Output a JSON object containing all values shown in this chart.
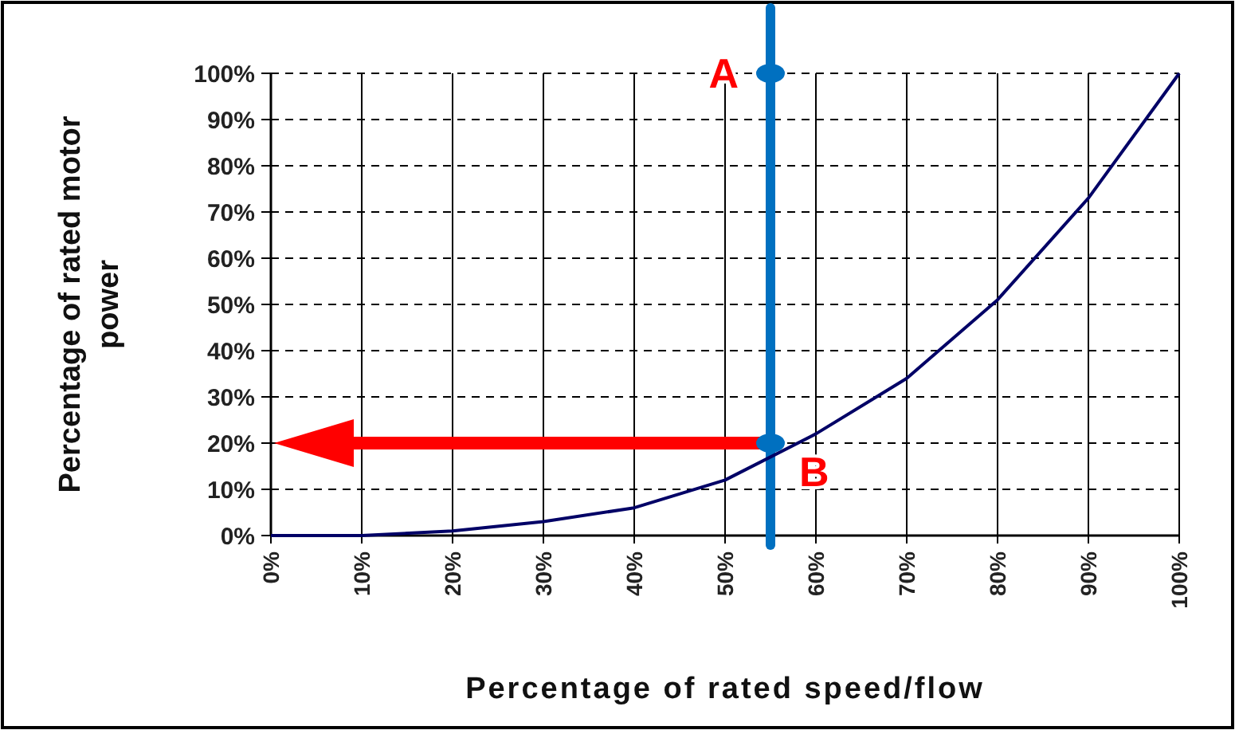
{
  "chart_data": {
    "type": "line",
    "xlabel": "Percentage of rated speed/flow",
    "ylabel": "Percentage of rated motor power",
    "x": [
      0,
      10,
      20,
      30,
      40,
      50,
      60,
      70,
      80,
      90,
      100
    ],
    "series": [
      {
        "color": "#000066",
        "marker": "none",
        "values": [
          0,
          0,
          1,
          3,
          6,
          12,
          22,
          34,
          51,
          73,
          100
        ]
      },
      {
        "type": "scatter",
        "marker": "circle",
        "color": "#0070c0",
        "x": [
          55,
          55
        ],
        "values": [
          100,
          20
        ]
      }
    ],
    "xlim": [
      0,
      100
    ],
    "ylim": [
      0,
      100
    ],
    "xticks": [
      {
        "value": 0,
        "label": "0%"
      },
      {
        "value": 10,
        "label": "10%"
      },
      {
        "value": 20,
        "label": "20%"
      },
      {
        "value": 30,
        "label": "30%"
      },
      {
        "value": 40,
        "label": "40%"
      },
      {
        "value": 50,
        "label": "50%"
      },
      {
        "value": 60,
        "label": "60%"
      },
      {
        "value": 70,
        "label": "70%"
      },
      {
        "value": 80,
        "label": "80%"
      },
      {
        "value": 90,
        "label": "90%"
      },
      {
        "value": 100,
        "label": "100%"
      }
    ],
    "yticks": [
      {
        "value": 0,
        "label": "0%"
      },
      {
        "value": 10,
        "label": "10%"
      },
      {
        "value": 20,
        "label": "20%"
      },
      {
        "value": 30,
        "label": "30%"
      },
      {
        "value": 40,
        "label": "40%"
      },
      {
        "value": 50,
        "label": "50%"
      },
      {
        "value": 60,
        "label": "60%"
      },
      {
        "value": 70,
        "label": "70%"
      },
      {
        "value": 80,
        "label": "80%"
      },
      {
        "value": 90,
        "label": "90%"
      },
      {
        "value": 100,
        "label": "100%"
      }
    ],
    "grid": true,
    "line_style": "solid",
    "ref_lines": [
      {
        "axis": "x",
        "value": 55,
        "color": "#0070c0"
      }
    ],
    "annotations": [
      {
        "text": "A",
        "x": 55,
        "y": 100
      },
      {
        "text": "B",
        "x": 55,
        "y": 20
      }
    ]
  }
}
